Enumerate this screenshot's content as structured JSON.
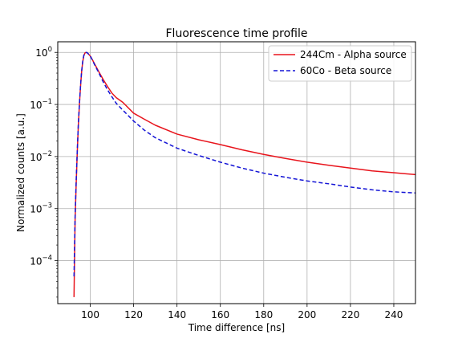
{
  "chart_data": {
    "type": "line",
    "title": "Fluorescence time profile",
    "xlabel": "Time difference [ns]",
    "ylabel": "Normalized counts [a.u.]",
    "xlim": [
      85,
      250
    ],
    "ylim": [
      1.5e-05,
      1.6
    ],
    "yscale": "log",
    "grid": true,
    "legend_position": "top-right",
    "x_ticks": [
      100,
      120,
      140,
      160,
      180,
      200,
      220,
      240
    ],
    "x_tick_labels": [
      "100",
      "120",
      "140",
      "160",
      "180",
      "200",
      "220",
      "240"
    ],
    "y_ticks": [
      0.0001,
      0.001,
      0.01,
      0.1,
      1
    ],
    "y_tick_labels": [
      {
        "base": "10",
        "exp": "−4"
      },
      {
        "base": "10",
        "exp": "−3"
      },
      {
        "base": "10",
        "exp": "−2"
      },
      {
        "base": "10",
        "exp": "−1"
      },
      {
        "base": "10",
        "exp": "0"
      }
    ],
    "series": [
      {
        "name": "244Cm - Alpha source",
        "color": "#e8141c",
        "style": "solid",
        "x": [
          92.5,
          93,
          93.5,
          94,
          94.5,
          95,
          95.5,
          96,
          96.5,
          97,
          97.5,
          98,
          98.5,
          99,
          100,
          101,
          102,
          104,
          106,
          108,
          110,
          112,
          115,
          120,
          125,
          130,
          140,
          150,
          160,
          170,
          180,
          190,
          200,
          210,
          220,
          230,
          240,
          250
        ],
        "y": [
          2e-05,
          0.0006,
          0.003,
          0.012,
          0.04,
          0.1,
          0.22,
          0.42,
          0.65,
          0.86,
          0.97,
          1.0,
          0.99,
          0.95,
          0.85,
          0.72,
          0.6,
          0.42,
          0.3,
          0.22,
          0.165,
          0.135,
          0.11,
          0.068,
          0.052,
          0.04,
          0.027,
          0.021,
          0.017,
          0.0135,
          0.011,
          0.0092,
          0.0078,
          0.0068,
          0.006,
          0.0053,
          0.0049,
          0.0045
        ]
      },
      {
        "name": "60Co - Beta source",
        "color": "#1515d6",
        "style": "dashed",
        "x": [
          92.5,
          93,
          93.5,
          94,
          94.5,
          95,
          95.5,
          96,
          96.5,
          97,
          97.5,
          98,
          98.5,
          99,
          100,
          101,
          102,
          104,
          106,
          108,
          110,
          112,
          115,
          120,
          125,
          130,
          140,
          150,
          160,
          170,
          180,
          190,
          200,
          210,
          220,
          230,
          240,
          250
        ],
        "y": [
          5e-05,
          0.0007,
          0.0035,
          0.013,
          0.042,
          0.105,
          0.23,
          0.43,
          0.66,
          0.87,
          0.97,
          1.0,
          0.99,
          0.95,
          0.85,
          0.71,
          0.58,
          0.4,
          0.27,
          0.19,
          0.14,
          0.105,
          0.078,
          0.048,
          0.032,
          0.023,
          0.0145,
          0.0105,
          0.0078,
          0.006,
          0.0048,
          0.004,
          0.0034,
          0.003,
          0.0026,
          0.0023,
          0.0021,
          0.002
        ]
      }
    ]
  }
}
